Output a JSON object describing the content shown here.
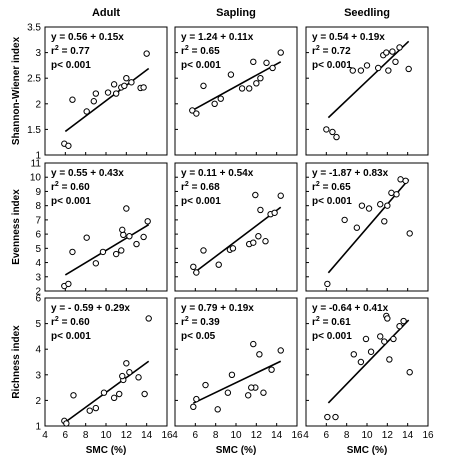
{
  "chart_data": {
    "type": "scatter",
    "columns": [
      "Adult",
      "Sapling",
      "Seedling"
    ],
    "rows": [
      {
        "ylabel": "Shannon-Wiener index",
        "ylim": [
          1,
          3.5
        ],
        "yticks": [
          1,
          1.5,
          2,
          2.5,
          3,
          3.5
        ]
      },
      {
        "ylabel": "Evenness index",
        "ylim": [
          2,
          11
        ],
        "yticks": [
          2,
          3,
          4,
          5,
          6,
          7,
          8,
          9,
          10,
          11
        ]
      },
      {
        "ylabel": "Richness index",
        "ylim": [
          1,
          6
        ],
        "yticks": [
          1,
          2,
          3,
          4,
          5,
          6
        ]
      }
    ],
    "xlabel": "SMC (%)",
    "xlim": [
      4,
      16
    ],
    "xticks": [
      4,
      6,
      8,
      10,
      12,
      14,
      16
    ],
    "panels": [
      {
        "row": 0,
        "col": 0,
        "equation": "y = 0.56 + 0.15x",
        "r2": "0.77",
        "p": "p< 0.001",
        "line": [
          [
            6.0,
            1.46
          ],
          [
            14.2,
            2.69
          ]
        ],
        "points": [
          [
            5.9,
            1.22
          ],
          [
            6.3,
            1.18
          ],
          [
            6.7,
            2.08
          ],
          [
            8.1,
            1.85
          ],
          [
            8.8,
            2.05
          ],
          [
            9.0,
            2.2
          ],
          [
            10.2,
            2.22
          ],
          [
            10.8,
            2.38
          ],
          [
            11.0,
            2.2
          ],
          [
            11.5,
            2.32
          ],
          [
            11.8,
            2.35
          ],
          [
            12.0,
            2.5
          ],
          [
            12.5,
            2.42
          ],
          [
            13.4,
            2.31
          ],
          [
            13.7,
            2.32
          ],
          [
            14.0,
            2.98
          ]
        ]
      },
      {
        "row": 0,
        "col": 1,
        "equation": "y = 1.24 + 0.11x",
        "r2": "0.65",
        "p": "p< 0.001",
        "line": [
          [
            5.7,
            1.87
          ],
          [
            14.4,
            2.82
          ]
        ],
        "points": [
          [
            5.7,
            1.87
          ],
          [
            6.1,
            1.81
          ],
          [
            6.8,
            2.35
          ],
          [
            7.9,
            2.0
          ],
          [
            8.5,
            2.1
          ],
          [
            9.5,
            2.57
          ],
          [
            10.6,
            2.3
          ],
          [
            11.3,
            2.3
          ],
          [
            11.7,
            2.82
          ],
          [
            12.0,
            2.4
          ],
          [
            12.4,
            2.5
          ],
          [
            13.0,
            2.8
          ],
          [
            13.6,
            2.7
          ],
          [
            14.4,
            3.0
          ]
        ]
      },
      {
        "row": 0,
        "col": 2,
        "equation": "y = 0.54 + 0.19x",
        "r2": "0.72",
        "p": "p< 0.001",
        "line": [
          [
            6.2,
            1.73
          ],
          [
            14.1,
            3.22
          ]
        ],
        "points": [
          [
            6.0,
            1.5
          ],
          [
            6.6,
            1.45
          ],
          [
            7.0,
            1.35
          ],
          [
            8.6,
            2.65
          ],
          [
            9.4,
            2.65
          ],
          [
            10.0,
            2.75
          ],
          [
            11.1,
            2.7
          ],
          [
            11.6,
            2.95
          ],
          [
            11.9,
            3.0
          ],
          [
            12.1,
            2.65
          ],
          [
            12.5,
            3.02
          ],
          [
            12.8,
            2.82
          ],
          [
            13.2,
            3.1
          ],
          [
            14.1,
            2.68
          ]
        ]
      },
      {
        "row": 1,
        "col": 0,
        "equation": "y = 0.55 + 0.43x",
        "r2": "0.60",
        "p": "p< 0.001",
        "line": [
          [
            6.0,
            3.13
          ],
          [
            14.2,
            6.66
          ]
        ],
        "points": [
          [
            5.9,
            2.35
          ],
          [
            6.3,
            2.5
          ],
          [
            6.7,
            4.75
          ],
          [
            8.1,
            5.75
          ],
          [
            9.0,
            3.95
          ],
          [
            9.7,
            4.75
          ],
          [
            11.0,
            4.6
          ],
          [
            11.5,
            4.85
          ],
          [
            11.7,
            5.95
          ],
          [
            12.0,
            7.8
          ],
          [
            12.3,
            5.85
          ],
          [
            13.0,
            5.3
          ],
          [
            13.7,
            5.8
          ],
          [
            14.1,
            6.9
          ],
          [
            11.6,
            6.3
          ]
        ]
      },
      {
        "row": 1,
        "col": 1,
        "equation": "y = 0.11 + 0.54x",
        "r2": "0.68",
        "p": "p< 0.001",
        "line": [
          [
            5.8,
            3.24
          ],
          [
            14.4,
            7.89
          ]
        ],
        "points": [
          [
            5.8,
            3.7
          ],
          [
            6.1,
            3.3
          ],
          [
            6.8,
            4.85
          ],
          [
            8.3,
            3.85
          ],
          [
            9.4,
            4.9
          ],
          [
            9.7,
            5.0
          ],
          [
            11.3,
            5.3
          ],
          [
            11.9,
            8.75
          ],
          [
            12.2,
            5.85
          ],
          [
            12.4,
            7.7
          ],
          [
            12.9,
            5.5
          ],
          [
            13.4,
            7.4
          ],
          [
            13.8,
            7.5
          ],
          [
            14.4,
            8.7
          ],
          [
            11.7,
            5.4
          ]
        ]
      },
      {
        "row": 1,
        "col": 2,
        "equation": "y = -1.87 + 0.83x",
        "r2": "0.65",
        "p": "p< 0.001",
        "line": [
          [
            6.2,
            3.28
          ],
          [
            14.1,
            9.84
          ]
        ],
        "points": [
          [
            6.1,
            2.5
          ],
          [
            7.8,
            7.0
          ],
          [
            9.0,
            6.45
          ],
          [
            9.5,
            8.0
          ],
          [
            10.2,
            7.8
          ],
          [
            11.3,
            8.1
          ],
          [
            11.7,
            6.9
          ],
          [
            12.0,
            8.0
          ],
          [
            12.4,
            8.9
          ],
          [
            12.9,
            8.8
          ],
          [
            13.3,
            9.85
          ],
          [
            13.8,
            9.75
          ],
          [
            14.2,
            6.05
          ]
        ]
      },
      {
        "row": 2,
        "col": 0,
        "equation": "y = - 0.59 + 0.29x",
        "r2": "0.60",
        "p": "p< 0.001",
        "line": [
          [
            6.0,
            1.15
          ],
          [
            14.2,
            3.53
          ]
        ],
        "points": [
          [
            5.9,
            1.2
          ],
          [
            6.1,
            1.1
          ],
          [
            6.8,
            2.2
          ],
          [
            8.4,
            1.6
          ],
          [
            9.0,
            1.7
          ],
          [
            9.8,
            2.3
          ],
          [
            10.8,
            2.1
          ],
          [
            11.3,
            2.25
          ],
          [
            11.7,
            2.8
          ],
          [
            12.0,
            3.45
          ],
          [
            12.3,
            3.1
          ],
          [
            13.2,
            2.9
          ],
          [
            13.8,
            2.25
          ],
          [
            14.2,
            5.2
          ],
          [
            11.6,
            2.95
          ]
        ]
      },
      {
        "row": 2,
        "col": 1,
        "equation": "y = 0.79 + 0.19x",
        "r2": "0.39",
        "p": "p< 0.05",
        "line": [
          [
            5.8,
            1.89
          ],
          [
            14.4,
            3.53
          ]
        ],
        "points": [
          [
            5.8,
            1.75
          ],
          [
            6.1,
            2.05
          ],
          [
            7.0,
            2.6
          ],
          [
            8.2,
            1.65
          ],
          [
            9.2,
            2.3
          ],
          [
            9.6,
            3.0
          ],
          [
            11.2,
            2.2
          ],
          [
            11.7,
            4.2
          ],
          [
            11.9,
            2.5
          ],
          [
            12.3,
            3.8
          ],
          [
            12.7,
            2.3
          ],
          [
            13.5,
            3.2
          ],
          [
            14.4,
            3.95
          ],
          [
            11.5,
            2.5
          ]
        ]
      },
      {
        "row": 2,
        "col": 2,
        "equation": "y = -0.64 + 0.41x",
        "r2": "0.61",
        "p": "p< 0.001",
        "line": [
          [
            6.2,
            1.9
          ],
          [
            14.1,
            5.14
          ]
        ],
        "points": [
          [
            6.1,
            1.35
          ],
          [
            6.9,
            1.35
          ],
          [
            8.7,
            3.8
          ],
          [
            9.4,
            3.5
          ],
          [
            9.9,
            4.4
          ],
          [
            10.4,
            3.9
          ],
          [
            11.3,
            4.5
          ],
          [
            11.7,
            4.3
          ],
          [
            11.9,
            5.3
          ],
          [
            12.2,
            3.6
          ],
          [
            12.6,
            4.4
          ],
          [
            13.2,
            4.9
          ],
          [
            13.6,
            5.1
          ],
          [
            14.2,
            3.1
          ],
          [
            12.0,
            5.2
          ]
        ]
      }
    ]
  }
}
